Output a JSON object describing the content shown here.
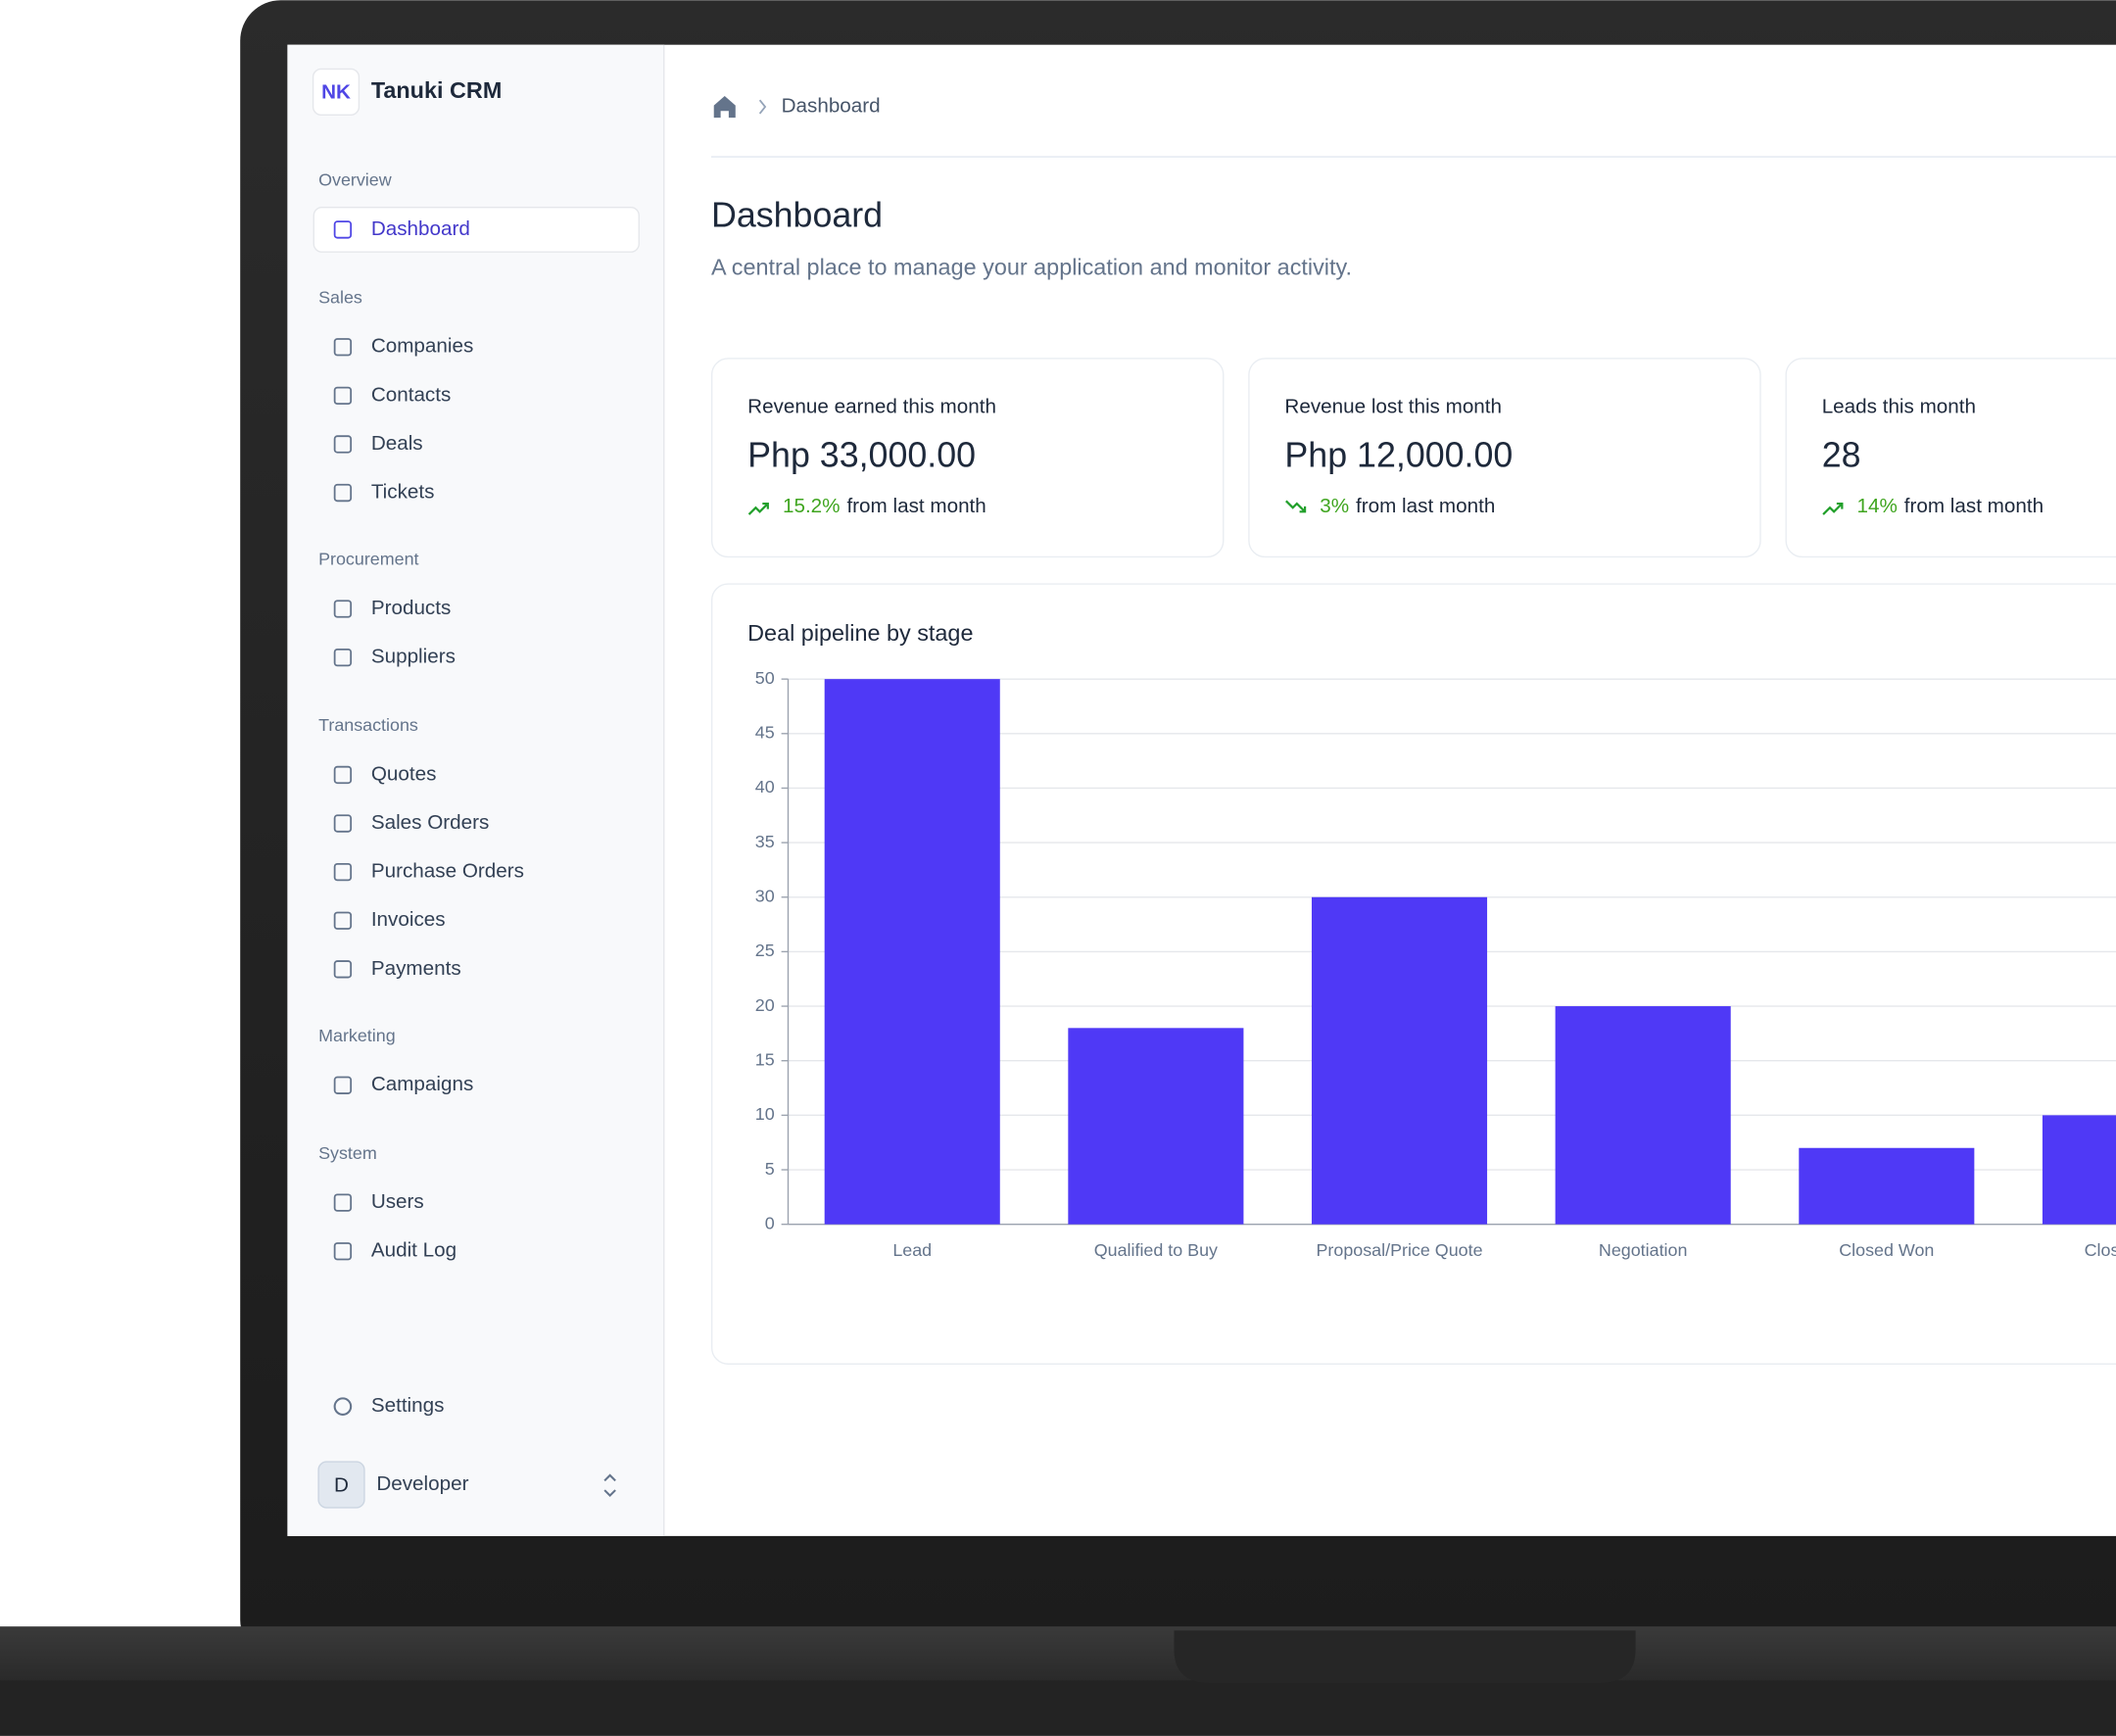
{
  "app": {
    "name": "Tanuki CRM"
  },
  "sidebar": {
    "sections": [
      {
        "label": "Overview",
        "items": [
          "Dashboard"
        ]
      },
      {
        "label": "Sales",
        "items": [
          "Companies",
          "Contacts",
          "Deals",
          "Tickets"
        ]
      },
      {
        "label": "Procurement",
        "items": [
          "Products",
          "Suppliers"
        ]
      },
      {
        "label": "Transactions",
        "items": [
          "Quotes",
          "Sales Orders",
          "Purchase Orders",
          "Invoices",
          "Payments"
        ]
      },
      {
        "label": "Marketing",
        "items": [
          "Campaigns"
        ]
      },
      {
        "label": "System",
        "items": [
          "Users",
          "Audit Log"
        ]
      }
    ],
    "settings": "Settings",
    "user": {
      "initial": "D",
      "name": "Developer"
    }
  },
  "breadcrumb": "Dashboard",
  "page": {
    "title": "Dashboard",
    "subtitle": "A central place to manage your application and monitor activity."
  },
  "stats": [
    {
      "label": "Revenue earned this month",
      "value": "Php 33,000.00",
      "change": "15.2%",
      "change_text": "from last month",
      "trend": "up"
    },
    {
      "label": "Revenue lost this month",
      "value": "Php 12,000.00",
      "change": "3%",
      "change_text": "from last month",
      "trend": "down"
    },
    {
      "label": "Leads this month",
      "value": "28",
      "change": "14%",
      "change_text": "from last month",
      "trend": "up"
    }
  ],
  "chart_data": {
    "type": "bar",
    "title": "Deal pipeline by stage",
    "categories": [
      "Lead",
      "Qualified to Buy",
      "Proposal/Price Quote",
      "Negotiation",
      "Closed Won",
      "Clos"
    ],
    "values": [
      50,
      18,
      30,
      20,
      7,
      10
    ],
    "color": "#4f39f6",
    "ylim": [
      0,
      50
    ],
    "yticks": [
      0,
      5,
      10,
      15,
      20,
      25,
      30,
      35,
      40,
      45,
      50
    ],
    "grid": true
  }
}
